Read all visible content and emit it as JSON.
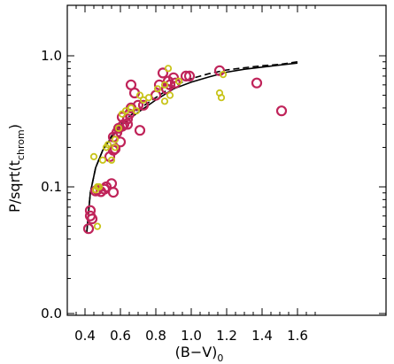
{
  "chart_data": {
    "type": "scatter",
    "xlabel": "(B−V)",
    "xlabel_subscript": "0",
    "ylabel": "P/sqrt(t",
    "ylabel_subscript": "chrom",
    "ylabel_close": ")",
    "xlim": [
      0.35,
      1.74
    ],
    "ylim": [
      0.0,
      1.25
    ],
    "y_scale": "log-like (0 at bottom)",
    "x_ticks": [
      "0.4",
      "0.6",
      "0.8",
      "1.0",
      "1.2",
      "1.4",
      "1.6"
    ],
    "y_ticks": [
      "0.0",
      "0.1",
      "1.0"
    ],
    "grid": false,
    "colors": {
      "series_magenta": "#c0245a",
      "series_yellow": "#c8c41a",
      "curves": "#000000"
    },
    "series": [
      {
        "marker": "large open circle",
        "color": "#c0245a",
        "points": [
          [
            0.42,
            0.048
          ],
          [
            0.43,
            0.06
          ],
          [
            0.43,
            0.066
          ],
          [
            0.44,
            0.057
          ],
          [
            0.46,
            0.093
          ],
          [
            0.47,
            0.095
          ],
          [
            0.49,
            0.092
          ],
          [
            0.51,
            0.096
          ],
          [
            0.52,
            0.1
          ],
          [
            0.54,
            0.17
          ],
          [
            0.55,
            0.106
          ],
          [
            0.56,
            0.091
          ],
          [
            0.56,
            0.19
          ],
          [
            0.57,
            0.195
          ],
          [
            0.56,
            0.24
          ],
          [
            0.58,
            0.26
          ],
          [
            0.59,
            0.28
          ],
          [
            0.6,
            0.22
          ],
          [
            0.61,
            0.29
          ],
          [
            0.62,
            0.3
          ],
          [
            0.61,
            0.34
          ],
          [
            0.64,
            0.3
          ],
          [
            0.64,
            0.33
          ],
          [
            0.65,
            0.36
          ],
          [
            0.66,
            0.4
          ],
          [
            0.7,
            0.42
          ],
          [
            0.71,
            0.27
          ],
          [
            0.73,
            0.42
          ],
          [
            0.66,
            0.6
          ],
          [
            0.68,
            0.52
          ],
          [
            0.8,
            0.5
          ],
          [
            0.82,
            0.6
          ],
          [
            0.84,
            0.74
          ],
          [
            0.86,
            0.56
          ],
          [
            0.87,
            0.64
          ],
          [
            0.88,
            0.6
          ],
          [
            0.9,
            0.68
          ],
          [
            0.91,
            0.62
          ],
          [
            0.97,
            0.7
          ],
          [
            0.99,
            0.7
          ],
          [
            1.16,
            0.77
          ],
          [
            1.37,
            0.62
          ],
          [
            1.51,
            0.38
          ]
        ]
      },
      {
        "marker": "small open circle",
        "color": "#c8c41a",
        "points": [
          [
            0.45,
            0.17
          ],
          [
            0.46,
            0.095
          ],
          [
            0.47,
            0.1
          ],
          [
            0.47,
            0.05
          ],
          [
            0.48,
            0.1
          ],
          [
            0.5,
            0.16
          ],
          [
            0.52,
            0.2
          ],
          [
            0.53,
            0.21
          ],
          [
            0.55,
            0.16
          ],
          [
            0.57,
            0.2
          ],
          [
            0.57,
            0.23
          ],
          [
            0.59,
            0.28
          ],
          [
            0.61,
            0.36
          ],
          [
            0.63,
            0.38
          ],
          [
            0.66,
            0.4
          ],
          [
            0.69,
            0.38
          ],
          [
            0.71,
            0.5
          ],
          [
            0.73,
            0.46
          ],
          [
            0.76,
            0.48
          ],
          [
            0.81,
            0.56
          ],
          [
            0.85,
            0.6
          ],
          [
            0.85,
            0.45
          ],
          [
            0.87,
            0.8
          ],
          [
            0.88,
            0.5
          ],
          [
            0.93,
            0.64
          ],
          [
            1.16,
            0.52
          ],
          [
            1.17,
            0.48
          ],
          [
            1.18,
            0.72
          ]
        ]
      }
    ],
    "curves": [
      {
        "style": "solid",
        "points": [
          [
            0.41,
            0.045
          ],
          [
            0.43,
            0.09
          ],
          [
            0.46,
            0.14
          ],
          [
            0.5,
            0.19
          ],
          [
            0.55,
            0.24
          ],
          [
            0.6,
            0.29
          ],
          [
            0.65,
            0.33
          ],
          [
            0.7,
            0.37
          ],
          [
            0.8,
            0.46
          ],
          [
            0.9,
            0.56
          ],
          [
            1.0,
            0.63
          ],
          [
            1.1,
            0.69
          ],
          [
            1.2,
            0.75
          ],
          [
            1.3,
            0.79
          ],
          [
            1.4,
            0.82
          ],
          [
            1.5,
            0.85
          ],
          [
            1.6,
            0.88
          ]
        ]
      },
      {
        "style": "dashed",
        "points": [
          [
            0.41,
            0.045
          ],
          [
            0.43,
            0.09
          ],
          [
            0.46,
            0.14
          ],
          [
            0.5,
            0.19
          ],
          [
            0.55,
            0.245
          ],
          [
            0.6,
            0.3
          ],
          [
            0.65,
            0.345
          ],
          [
            0.7,
            0.39
          ],
          [
            0.8,
            0.48
          ],
          [
            0.9,
            0.59
          ],
          [
            1.0,
            0.67
          ],
          [
            1.1,
            0.73
          ],
          [
            1.2,
            0.78
          ],
          [
            1.3,
            0.81
          ],
          [
            1.4,
            0.84
          ],
          [
            1.5,
            0.86
          ],
          [
            1.6,
            0.9
          ]
        ]
      }
    ]
  }
}
